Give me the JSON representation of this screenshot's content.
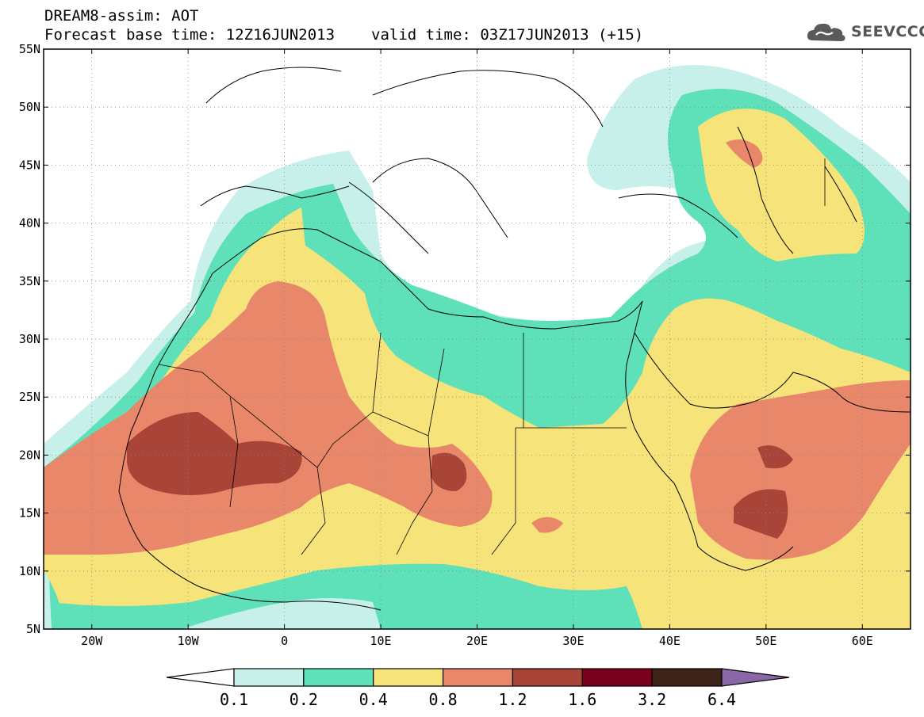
{
  "header": {
    "line1": "DREAM8-assim: AOT",
    "base_time": "Forecast base time: 12Z16JUN2013",
    "valid_time": "valid time: 03Z17JUN2013 (+15)"
  },
  "logo": {
    "text": "SEEVCCC",
    "icon": "cloud-icon"
  },
  "map": {
    "lon_range": [
      -25,
      65
    ],
    "lat_range": [
      5,
      55
    ],
    "lat_ticks": [
      {
        "value": 55,
        "label": "55N"
      },
      {
        "value": 50,
        "label": "50N"
      },
      {
        "value": 45,
        "label": "45N"
      },
      {
        "value": 40,
        "label": "40N"
      },
      {
        "value": 35,
        "label": "35N"
      },
      {
        "value": 30,
        "label": "30N"
      },
      {
        "value": 25,
        "label": "25N"
      },
      {
        "value": 20,
        "label": "20N"
      },
      {
        "value": 15,
        "label": "15N"
      },
      {
        "value": 10,
        "label": "10N"
      },
      {
        "value": 5,
        "label": "5N"
      }
    ],
    "lon_ticks": [
      {
        "value": -20,
        "label": "20W"
      },
      {
        "value": -10,
        "label": "10W"
      },
      {
        "value": 0,
        "label": "0"
      },
      {
        "value": 10,
        "label": "10E"
      },
      {
        "value": 20,
        "label": "20E"
      },
      {
        "value": 30,
        "label": "30E"
      },
      {
        "value": 40,
        "label": "40E"
      },
      {
        "value": 50,
        "label": "50E"
      },
      {
        "value": 60,
        "label": "60E"
      }
    ],
    "grid": "dotted"
  },
  "colorbar": {
    "labels": [
      "0.1",
      "0.2",
      "0.4",
      "0.8",
      "1.2",
      "1.6",
      "3.2",
      "6.4"
    ],
    "colors": [
      "#ffffff",
      "#c8f0ea",
      "#5ee0b8",
      "#f6e37a",
      "#e8876a",
      "#a84438",
      "#7a0020",
      "#3c2418",
      "#8a68a8"
    ]
  }
}
